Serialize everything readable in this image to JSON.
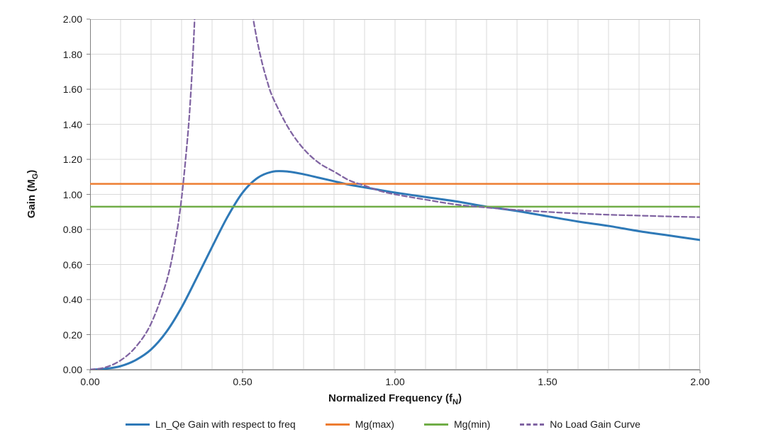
{
  "chart_data": {
    "type": "line",
    "title": "",
    "xlabel": "Normalized Frequency (fN)",
    "ylabel": "Gain (MG)",
    "xlabel_parts": {
      "main": "Normalized Frequency (f",
      "sub": "N",
      "close": ")"
    },
    "ylabel_parts": {
      "main": "Gain (M",
      "sub": "G",
      "close": ")"
    },
    "xlim": [
      0,
      2
    ],
    "ylim": [
      0,
      2
    ],
    "x_ticks": [
      "0.00",
      "0.50",
      "1.00",
      "1.50",
      "2.00"
    ],
    "x_tick_values": [
      0,
      0.5,
      1,
      1.5,
      2
    ],
    "y_ticks": [
      "0.00",
      "0.20",
      "0.40",
      "0.60",
      "0.80",
      "1.00",
      "1.20",
      "1.40",
      "1.60",
      "1.80",
      "2.00"
    ],
    "y_tick_values": [
      0,
      0.2,
      0.4,
      0.6,
      0.8,
      1,
      1.2,
      1.4,
      1.6,
      1.8,
      2
    ],
    "grid": {
      "on": true,
      "color": "#d9d9d9",
      "border_color": "#bfbfbf",
      "axis_color": "#808080",
      "x_lines": [
        0.1,
        0.2,
        0.3,
        0.4,
        0.5,
        0.6,
        0.7,
        0.8,
        0.9,
        1.0,
        1.1,
        1.2,
        1.3,
        1.4,
        1.5,
        1.6,
        1.7,
        1.8,
        1.9
      ],
      "y_lines": [
        0.2,
        0.4,
        0.6,
        0.8,
        1.0,
        1.2,
        1.4,
        1.6,
        1.8
      ]
    },
    "legend_position": "bottom",
    "series": [
      {
        "name": "Ln_Qe Gain with respect to freq",
        "color": "#2E79B7",
        "width": 3,
        "dash": "",
        "smooth": true,
        "segments": [
          {
            "x": [
              0,
              0.05,
              0.1,
              0.15,
              0.2,
              0.25,
              0.3,
              0.35,
              0.4,
              0.45,
              0.5,
              0.55,
              0.6,
              0.65,
              0.7,
              0.75,
              0.8,
              0.85,
              0.9,
              0.95,
              1,
              1.1,
              1.2,
              1.3,
              1.4,
              1.5,
              1.6,
              1.7,
              1.8,
              1.9,
              2
            ],
            "y": [
              0,
              0.005,
              0.02,
              0.055,
              0.115,
              0.215,
              0.355,
              0.525,
              0.7,
              0.87,
              1.01,
              1.095,
              1.13,
              1.13,
              1.115,
              1.095,
              1.075,
              1.055,
              1.04,
              1.025,
              1.01,
              0.985,
              0.96,
              0.93,
              0.905,
              0.875,
              0.845,
              0.82,
              0.79,
              0.765,
              0.74
            ]
          }
        ]
      },
      {
        "name": "Mg(max)",
        "color": "#ED7D31",
        "width": 2.5,
        "dash": "",
        "smooth": false,
        "segments": [
          {
            "x": [
              0,
              2
            ],
            "y": [
              1.06,
              1.06
            ]
          }
        ]
      },
      {
        "name": "Mg(min)",
        "color": "#70AD47",
        "width": 2.5,
        "dash": "",
        "smooth": false,
        "segments": [
          {
            "x": [
              0,
              2
            ],
            "y": [
              0.93,
              0.93
            ]
          }
        ]
      },
      {
        "name": "No Load Gain Curve",
        "color": "#8064A2",
        "width": 2.25,
        "dash": "7 4",
        "smooth": true,
        "segments": [
          {
            "x": [
              0,
              0.05,
              0.1,
              0.15,
              0.2,
              0.25,
              0.28,
              0.3,
              0.32,
              0.33,
              0.34,
              0.35
            ],
            "y": [
              0,
              0.013,
              0.053,
              0.13,
              0.263,
              0.5,
              0.74,
              0.978,
              1.33,
              1.57,
              1.89,
              2.31
            ]
          },
          {
            "x": [
              0.515,
              0.52,
              0.54,
              0.56,
              0.58,
              0.6,
              0.65,
              0.7,
              0.75,
              0.8,
              0.85,
              0.9,
              0.95,
              1,
              1.1,
              1.2,
              1.3,
              1.4,
              1.5,
              1.6,
              1.7,
              1.8,
              1.9,
              2
            ],
            "y": [
              2.25,
              2.17,
              1.95,
              1.78,
              1.65,
              1.55,
              1.38,
              1.26,
              1.18,
              1.13,
              1.08,
              1.05,
              1.02,
              1,
              0.97,
              0.942,
              0.925,
              0.911,
              0.9,
              0.891,
              0.884,
              0.879,
              0.874,
              0.87
            ]
          }
        ]
      }
    ]
  }
}
